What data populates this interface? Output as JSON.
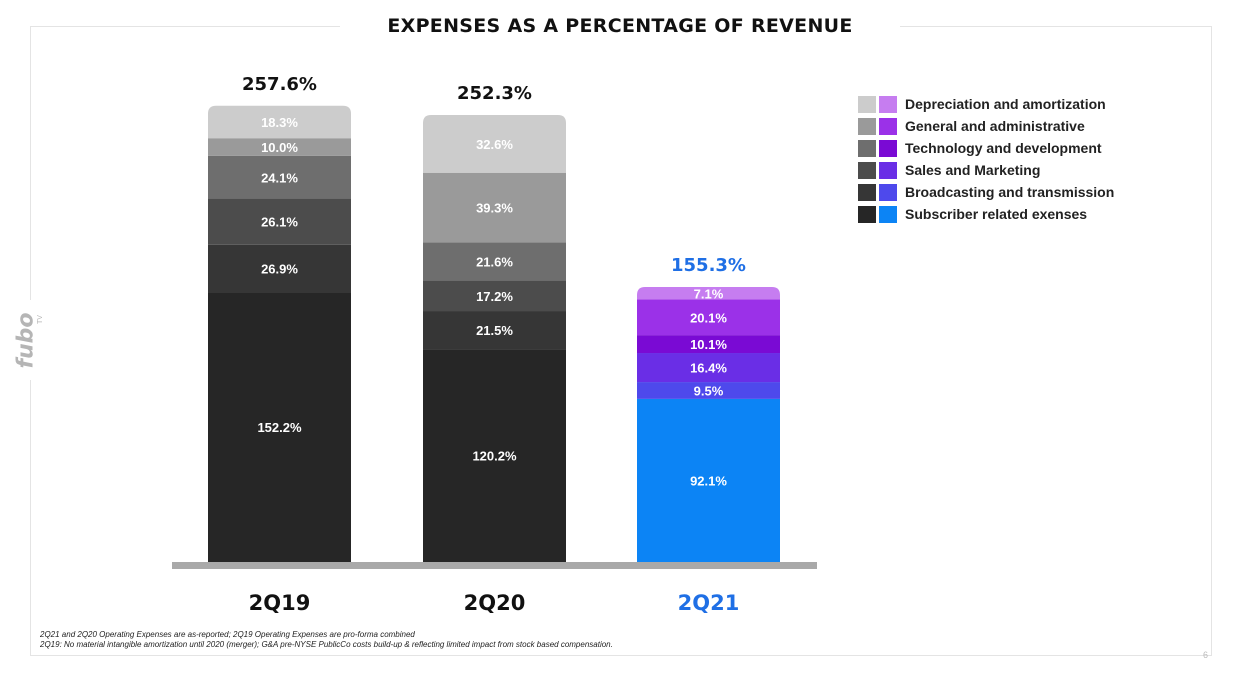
{
  "title": "EXPENSES AS A PERCENTAGE OF REVENUE",
  "logo": {
    "text": "fubo",
    "superscript": "TV"
  },
  "legend": {
    "items": [
      {
        "label": "Depreciation and amortization",
        "colors": [
          "#cccccc",
          "#c67df0"
        ]
      },
      {
        "label": "General and administrative",
        "colors": [
          "#9a9a9a",
          "#9b31e8"
        ]
      },
      {
        "label": "Technology and development",
        "colors": [
          "#6e6e6e",
          "#7a0ad4"
        ]
      },
      {
        "label": "Sales and Marketing",
        "colors": [
          "#4c4c4c",
          "#6a2ee6"
        ]
      },
      {
        "label": "Broadcasting and transmission",
        "colors": [
          "#363636",
          "#4e49ec"
        ]
      },
      {
        "label": "Subscriber related exenses",
        "colors": [
          "#262626",
          "#0c84f5"
        ]
      }
    ]
  },
  "chart_data": {
    "type": "bar",
    "stacked": true,
    "title": "EXPENSES AS A PERCENTAGE OF REVENUE",
    "categories": [
      "2Q19",
      "2Q20",
      "2Q21"
    ],
    "totals": [
      "257.6%",
      "252.3%",
      "155.3%"
    ],
    "series": [
      {
        "name": "Subscriber related exenses",
        "values": [
          152.2,
          120.2,
          92.1
        ],
        "labels": [
          "152.2%",
          "120.2%",
          "92.1%"
        ]
      },
      {
        "name": "Broadcasting and transmission",
        "values": [
          26.9,
          21.5,
          9.5
        ],
        "labels": [
          "26.9%",
          "21.5%",
          "9.5%"
        ]
      },
      {
        "name": "Sales and Marketing",
        "values": [
          26.1,
          17.2,
          16.4
        ],
        "labels": [
          "26.1%",
          "17.2%",
          "16.4%"
        ]
      },
      {
        "name": "Technology and development",
        "values": [
          24.1,
          21.6,
          10.1
        ],
        "labels": [
          "24.1%",
          "21.6%",
          "10.1%"
        ]
      },
      {
        "name": "General and administrative",
        "values": [
          10.0,
          39.3,
          20.1
        ],
        "labels": [
          "10.0%",
          "39.3%",
          "20.1%"
        ]
      },
      {
        "name": "Depreciation and amortization",
        "values": [
          18.3,
          32.6,
          7.1
        ],
        "labels": [
          "18.3%",
          "32.6%",
          "7.1%"
        ]
      }
    ],
    "colors": {
      "grey": [
        "#262626",
        "#363636",
        "#4c4c4c",
        "#6e6e6e",
        "#9a9a9a",
        "#cccccc"
      ],
      "highlight": [
        "#0c84f5",
        "#4e49ec",
        "#6a2ee6",
        "#7a0ad4",
        "#9b31e8",
        "#c67df0"
      ]
    },
    "highlight_category": "2Q21",
    "highlight_text_color": "#1f6fe5",
    "baseline_color": "#a9a9a9",
    "legend_position": "top-right",
    "grid": false
  },
  "footnotes": [
    "2Q21 and 2Q20 Operating Expenses are as-reported; 2Q19 Operating Expenses are pro-forma combined",
    "2Q19: No material intangible amortization until 2020 (merger); G&A pre-NYSE PublicCo costs build-up & reflecting limited impact from stock based compensation."
  ],
  "page_number": "6"
}
